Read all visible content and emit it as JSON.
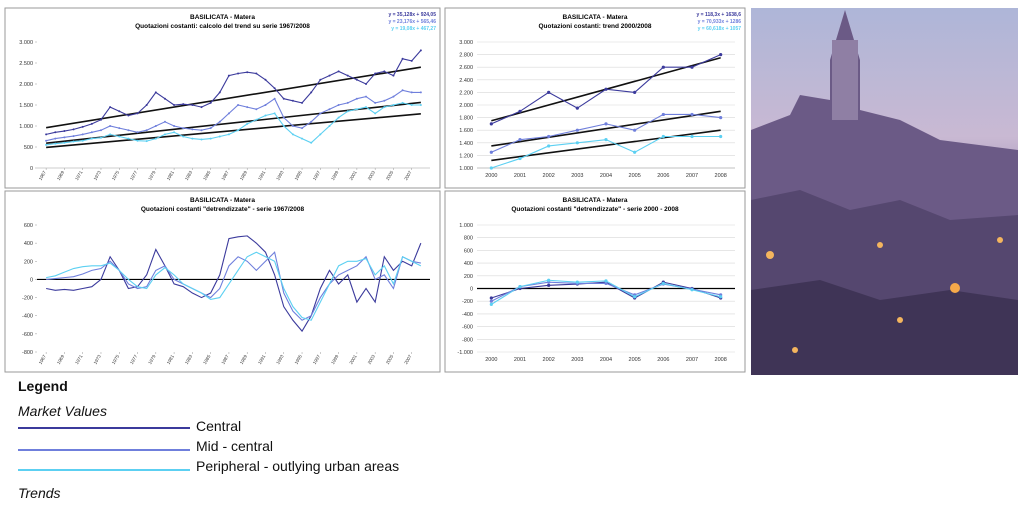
{
  "chart_data": [
    {
      "type": "line",
      "title": "BASILICATA - Matera",
      "subtitle": "Quotazioni costanti: calcolo del trend su serie 1967/2008",
      "x": [
        1967,
        1968,
        1969,
        1970,
        1971,
        1972,
        1973,
        1974,
        1975,
        1976,
        1977,
        1978,
        1979,
        1980,
        1981,
        1982,
        1983,
        1984,
        1985,
        1986,
        1987,
        1988,
        1989,
        1990,
        1991,
        1992,
        1993,
        1994,
        1995,
        1996,
        1997,
        1998,
        1999,
        2000,
        2001,
        2002,
        2003,
        2004,
        2005,
        2006,
        2007,
        2008
      ],
      "xlim": [
        1966,
        2009
      ],
      "xticks": [
        1967,
        1969,
        1971,
        1973,
        1975,
        1977,
        1979,
        1981,
        1983,
        1985,
        1987,
        1989,
        1991,
        1993,
        1995,
        1997,
        1999,
        2001,
        2003,
        2005,
        2007
      ],
      "ylim": [
        0,
        3000
      ],
      "yticks": [
        {
          "value": 0,
          "label": "0"
        },
        {
          "value": 500,
          "label": "500"
        },
        {
          "value": 1000,
          "label": "1.000"
        },
        {
          "value": 1500,
          "label": "1.500"
        },
        {
          "value": 2000,
          "label": "2.000"
        },
        {
          "value": 2500,
          "label": "2.500"
        },
        {
          "value": 3000,
          "label": "3.000"
        }
      ],
      "grid": false,
      "markers": true,
      "equations": [
        "y = 35,128x + 924,05",
        "y = 23,176x + 565,46",
        "y = 19,08x + 467,27"
      ],
      "series": [
        {
          "name": "Central",
          "color": "#3b3a9c",
          "values": [
            800,
            850,
            880,
            920,
            980,
            1050,
            1150,
            1450,
            1350,
            1250,
            1300,
            1500,
            1800,
            1650,
            1500,
            1520,
            1500,
            1450,
            1550,
            1800,
            2200,
            2250,
            2280,
            2250,
            2100,
            1900,
            1650,
            1600,
            1550,
            1800,
            2100,
            2200,
            2300,
            2200,
            2100,
            2000,
            2250,
            2300,
            2200,
            2600,
            2550,
            2800
          ]
        },
        {
          "name": "Mid - central",
          "color": "#6f7fdc",
          "values": [
            650,
            700,
            730,
            760,
            800,
            850,
            900,
            1000,
            950,
            900,
            850,
            900,
            1000,
            1100,
            1000,
            950,
            920,
            900,
            950,
            1100,
            1300,
            1500,
            1450,
            1400,
            1500,
            1650,
            1200,
            1000,
            950,
            1100,
            1300,
            1400,
            1500,
            1550,
            1650,
            1700,
            1550,
            1600,
            1700,
            1850,
            1800,
            1800
          ]
        },
        {
          "name": "Peripheral - outlying urban areas",
          "color": "#5cd0f2",
          "values": [
            550,
            580,
            600,
            630,
            650,
            700,
            720,
            800,
            750,
            700,
            650,
            640,
            700,
            800,
            850,
            750,
            700,
            680,
            700,
            750,
            800,
            900,
            1050,
            1150,
            1250,
            1300,
            1000,
            800,
            700,
            600,
            800,
            1000,
            1200,
            1350,
            1400,
            1450,
            1300,
            1450,
            1500,
            1550,
            1500,
            1500
          ]
        }
      ],
      "trends": [
        {
          "x": [
            1967,
            2008
          ],
          "values": [
            960,
            2400
          ]
        },
        {
          "x": [
            1967,
            2008
          ],
          "values": [
            590,
            1560
          ]
        },
        {
          "x": [
            1967,
            2008
          ],
          "values": [
            490,
            1290
          ]
        }
      ]
    },
    {
      "type": "line",
      "title": "BASILICATA - Matera",
      "subtitle": "Quotazioni costanti: trend 2000/2008",
      "categories": [
        "2000",
        "2001",
        "2002",
        "2003",
        "2004",
        "2005",
        "2006",
        "2007",
        "2008"
      ],
      "ylim": [
        1000,
        3000
      ],
      "yticks": [
        {
          "value": 1000,
          "label": "1.000"
        },
        {
          "value": 1200,
          "label": "1.200"
        },
        {
          "value": 1400,
          "label": "1.400"
        },
        {
          "value": 1600,
          "label": "1.600"
        },
        {
          "value": 1800,
          "label": "1.800"
        },
        {
          "value": 2000,
          "label": "2.000"
        },
        {
          "value": 2200,
          "label": "2.200"
        },
        {
          "value": 2400,
          "label": "2.400"
        },
        {
          "value": 2600,
          "label": "2.600"
        },
        {
          "value": 2800,
          "label": "2.800"
        },
        {
          "value": 3000,
          "label": "3.000"
        }
      ],
      "grid": true,
      "markers": true,
      "equations": [
        "y = 118,3x + 1638,6",
        "y = 70,933x + 1286",
        "y = 60,618x + 1057"
      ],
      "series": [
        {
          "name": "Central",
          "color": "#3b3a9c",
          "values": [
            1700,
            1900,
            2200,
            1950,
            2250,
            2200,
            2600,
            2600,
            2800
          ]
        },
        {
          "name": "Mid - central",
          "color": "#6f7fdc",
          "values": [
            1250,
            1450,
            1500,
            1600,
            1700,
            1600,
            1850,
            1850,
            1800
          ]
        },
        {
          "name": "Peripheral - outlying urban areas",
          "color": "#5cd0f2",
          "values": [
            1000,
            1150,
            1350,
            1400,
            1450,
            1250,
            1500,
            1500,
            1500
          ]
        }
      ],
      "trends": [
        {
          "values": [
            1750,
            2750
          ]
        },
        {
          "values": [
            1350,
            1900
          ]
        },
        {
          "values": [
            1120,
            1600
          ]
        }
      ]
    },
    {
      "type": "line",
      "title": "BASILICATA - Matera",
      "subtitle": "Quotazioni costanti \"detrendizzate\" - serie 1967/2008",
      "x": [
        1967,
        1968,
        1969,
        1970,
        1971,
        1972,
        1973,
        1974,
        1975,
        1976,
        1977,
        1978,
        1979,
        1980,
        1981,
        1982,
        1983,
        1984,
        1985,
        1986,
        1987,
        1988,
        1989,
        1990,
        1991,
        1992,
        1993,
        1994,
        1995,
        1996,
        1997,
        1998,
        1999,
        2000,
        2001,
        2002,
        2003,
        2004,
        2005,
        2006,
        2007,
        2008
      ],
      "xlim": [
        1966,
        2009
      ],
      "xticks": [
        1967,
        1969,
        1971,
        1973,
        1975,
        1977,
        1979,
        1981,
        1983,
        1985,
        1987,
        1989,
        1991,
        1993,
        1995,
        1997,
        1999,
        2001,
        2003,
        2005,
        2007
      ],
      "ylim": [
        -800,
        600
      ],
      "yticks": [
        -800,
        -600,
        -400,
        -200,
        0,
        200,
        400,
        600
      ],
      "grid": false,
      "markers": false,
      "series": [
        {
          "name": "Central",
          "color": "#3b3a9c",
          "values": [
            -100,
            -120,
            -110,
            -120,
            -100,
            -80,
            0,
            250,
            100,
            -100,
            -80,
            50,
            330,
            150,
            -50,
            -80,
            -150,
            -200,
            -150,
            50,
            450,
            470,
            480,
            400,
            300,
            50,
            -300,
            -450,
            -570,
            -400,
            -100,
            100,
            -50,
            50,
            -250,
            -100,
            -250,
            250,
            100,
            200,
            150,
            400
          ]
        },
        {
          "name": "Mid - central",
          "color": "#6f7fdc",
          "values": [
            0,
            10,
            20,
            30,
            60,
            100,
            120,
            200,
            100,
            -50,
            -100,
            -80,
            100,
            150,
            0,
            -50,
            -100,
            -150,
            -200,
            -100,
            150,
            250,
            200,
            100,
            200,
            300,
            -150,
            -350,
            -450,
            -400,
            -200,
            -50,
            50,
            100,
            150,
            250,
            0,
            50,
            -100,
            250,
            200,
            180
          ]
        },
        {
          "name": "Peripheral - outlying urban areas",
          "color": "#5cd0f2",
          "values": [
            20,
            40,
            80,
            120,
            140,
            150,
            150,
            180,
            100,
            0,
            -80,
            -100,
            50,
            130,
            50,
            -50,
            -100,
            -150,
            -220,
            -200,
            -50,
            100,
            250,
            300,
            250,
            200,
            -100,
            -300,
            -420,
            -450,
            -250,
            -50,
            150,
            200,
            200,
            230,
            50,
            150,
            -50,
            250,
            200,
            150
          ]
        }
      ]
    },
    {
      "type": "line",
      "title": "BASILICATA - Matera",
      "subtitle": "Quotazioni costanti \"detrendizzate\" - serie 2000 - 2008",
      "categories": [
        "2000",
        "2001",
        "2002",
        "2003",
        "2004",
        "2005",
        "2006",
        "2007",
        "2008"
      ],
      "ylim": [
        -1000,
        1000
      ],
      "yticks": [
        {
          "value": -1000,
          "label": "-1.000"
        },
        -800,
        -600,
        -400,
        -200,
        0,
        200,
        400,
        600,
        800,
        {
          "value": 1000,
          "label": "1.000"
        }
      ],
      "grid": true,
      "markers": true,
      "series": [
        {
          "name": "Central",
          "color": "#3b3a9c",
          "values": [
            -150,
            0,
            50,
            70,
            100,
            -150,
            100,
            0,
            -150
          ]
        },
        {
          "name": "Mid - central",
          "color": "#6f7fdc",
          "values": [
            -200,
            30,
            100,
            80,
            80,
            -100,
            70,
            -10,
            -100
          ]
        },
        {
          "name": "Peripheral - outlying urban areas",
          "color": "#5cd0f2",
          "values": [
            -250,
            30,
            130,
            100,
            120,
            -130,
            80,
            -20,
            -130
          ]
        }
      ]
    }
  ],
  "legend": {
    "title": "Legend",
    "market_values": "Market Values",
    "items": [
      "Central",
      "Mid - central",
      "Peripheral - outlying urban areas"
    ],
    "trends": "Trends"
  }
}
